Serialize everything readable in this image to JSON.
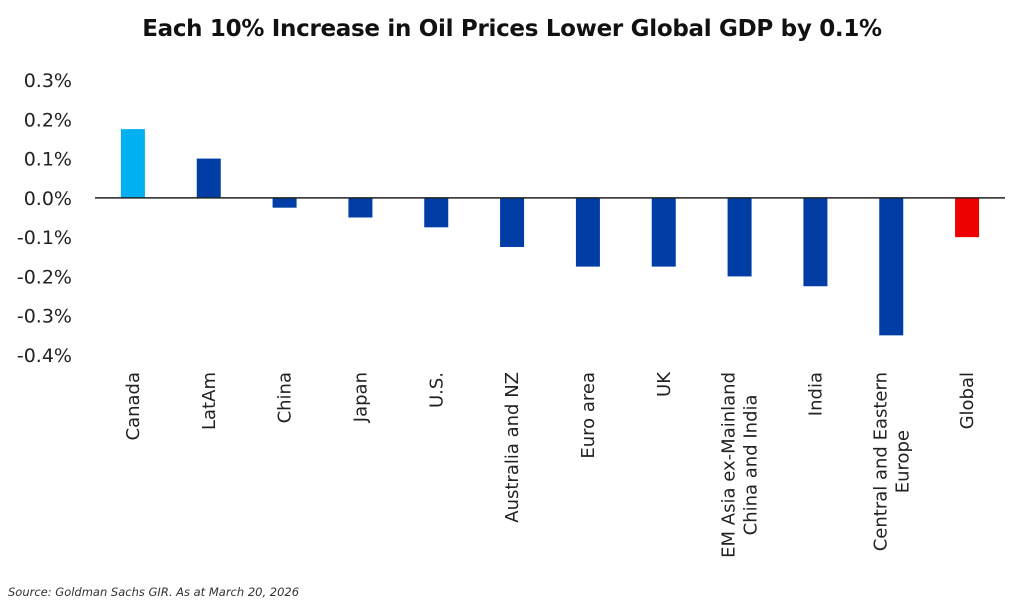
{
  "chart_data": {
    "type": "bar",
    "title": "Each 10% Increase in Oil Prices Lower Global GDP by 0.1%",
    "xlabel": "",
    "ylabel": "",
    "ylim": [
      -0.4,
      0.3
    ],
    "yticks": [
      0.3,
      0.2,
      0.1,
      0.0,
      -0.1,
      -0.2,
      -0.3,
      -0.4
    ],
    "ytick_labels": [
      "0.3%",
      "0.2%",
      "0.1%",
      "0.0%",
      "-0.1%",
      "-0.2%",
      "-0.3%",
      "-0.4%"
    ],
    "grid": false,
    "legend": "none",
    "categories": [
      [
        "Canada"
      ],
      [
        "LatAm"
      ],
      [
        "China"
      ],
      [
        "Japan"
      ],
      [
        "U.S."
      ],
      [
        "Australia and NZ"
      ],
      [
        "Euro area"
      ],
      [
        "UK"
      ],
      [
        "EM Asia ex-Mainland",
        "China and India"
      ],
      [
        "India"
      ],
      [
        "Central and Eastern",
        "Europe"
      ],
      [
        "Global"
      ]
    ],
    "values": [
      0.175,
      0.1,
      -0.025,
      -0.05,
      -0.075,
      -0.125,
      -0.175,
      -0.175,
      -0.2,
      -0.225,
      -0.35,
      -0.1
    ],
    "colors": [
      "#00b0f0",
      "#003da5",
      "#003da5",
      "#003da5",
      "#003da5",
      "#003da5",
      "#003da5",
      "#003da5",
      "#003da5",
      "#003da5",
      "#003da5",
      "#ee0000"
    ],
    "units": "%"
  },
  "source": "Source: Goldman Sachs GIR. As at March 20, 2026"
}
